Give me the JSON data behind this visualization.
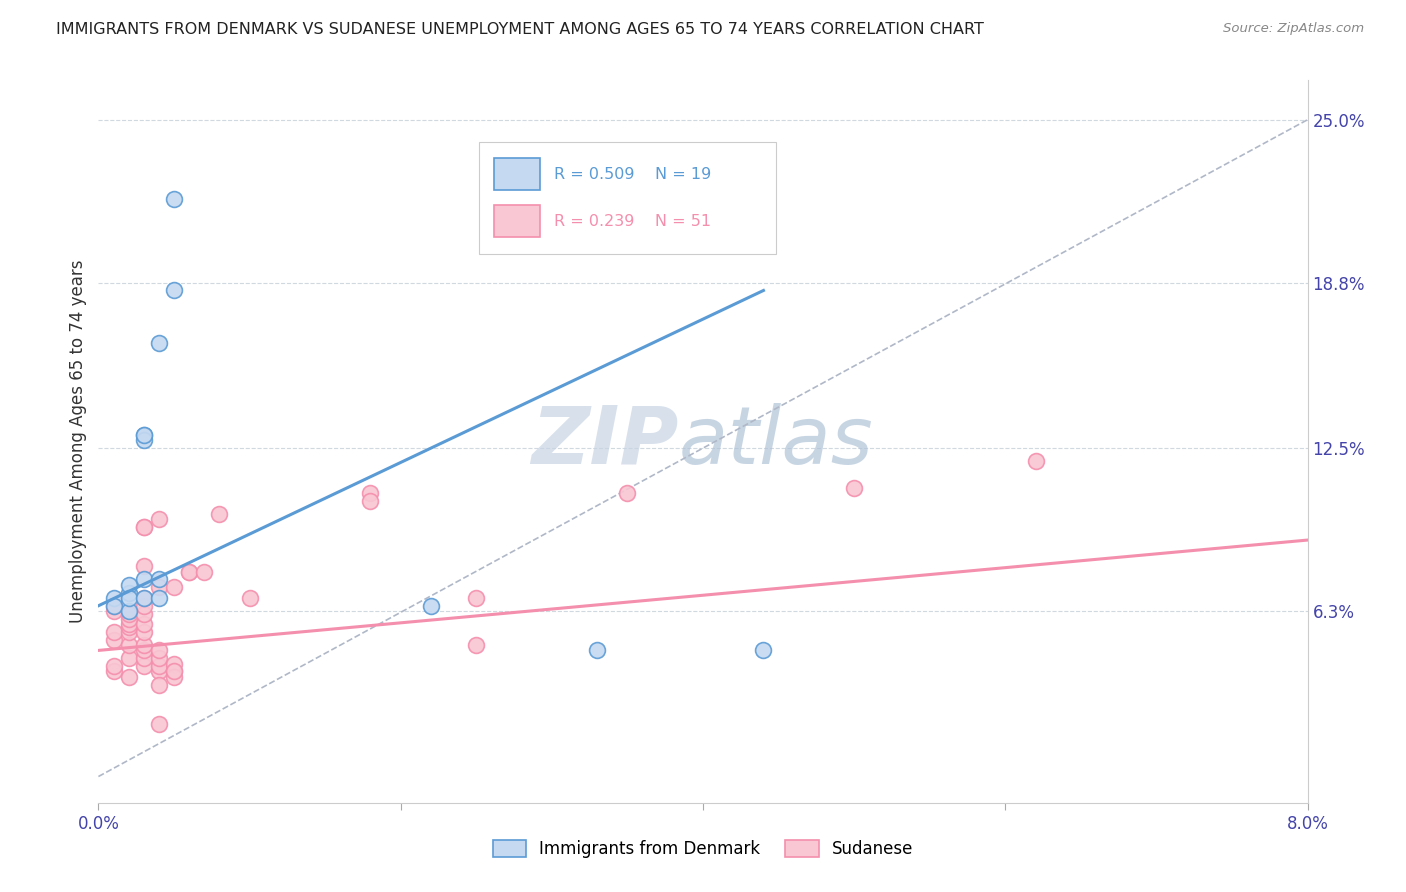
{
  "title": "IMMIGRANTS FROM DENMARK VS SUDANESE UNEMPLOYMENT AMONG AGES 65 TO 74 YEARS CORRELATION CHART",
  "source": "Source: ZipAtlas.com",
  "ylabel": "Unemployment Among Ages 65 to 74 years",
  "xlim": [
    0.0,
    0.08
  ],
  "ylim": [
    -0.01,
    0.265
  ],
  "xticks": [
    0.0,
    0.02,
    0.04,
    0.06,
    0.08
  ],
  "xticklabels": [
    "0.0%",
    "",
    "",
    "",
    "8.0%"
  ],
  "yticks_right": [
    0.063,
    0.125,
    0.188,
    0.25
  ],
  "yticklabels_right": [
    "6.3%",
    "12.5%",
    "18.8%",
    "25.0%"
  ],
  "denmark_R": "0.509",
  "denmark_N": "19",
  "sudanese_R": "0.239",
  "sudanese_N": "51",
  "denmark_label": "Immigrants from Denmark",
  "sudanese_label": "Sudanese",
  "denmark_scatter": [
    [
      0.001,
      0.068
    ],
    [
      0.001,
      0.065
    ],
    [
      0.002,
      0.063
    ],
    [
      0.002,
      0.07
    ],
    [
      0.002,
      0.073
    ],
    [
      0.002,
      0.068
    ],
    [
      0.003,
      0.13
    ],
    [
      0.003,
      0.128
    ],
    [
      0.003,
      0.075
    ],
    [
      0.003,
      0.068
    ],
    [
      0.003,
      0.13
    ],
    [
      0.004,
      0.165
    ],
    [
      0.004,
      0.075
    ],
    [
      0.004,
      0.068
    ],
    [
      0.005,
      0.185
    ],
    [
      0.005,
      0.22
    ],
    [
      0.022,
      0.065
    ],
    [
      0.033,
      0.048
    ],
    [
      0.044,
      0.048
    ]
  ],
  "sudanese_scatter": [
    [
      0.001,
      0.052
    ],
    [
      0.001,
      0.055
    ],
    [
      0.001,
      0.063
    ],
    [
      0.001,
      0.065
    ],
    [
      0.001,
      0.04
    ],
    [
      0.001,
      0.042
    ],
    [
      0.002,
      0.045
    ],
    [
      0.002,
      0.05
    ],
    [
      0.002,
      0.055
    ],
    [
      0.002,
      0.057
    ],
    [
      0.002,
      0.058
    ],
    [
      0.002,
      0.06
    ],
    [
      0.002,
      0.062
    ],
    [
      0.002,
      0.038
    ],
    [
      0.003,
      0.042
    ],
    [
      0.003,
      0.045
    ],
    [
      0.003,
      0.048
    ],
    [
      0.003,
      0.05
    ],
    [
      0.003,
      0.055
    ],
    [
      0.003,
      0.058
    ],
    [
      0.003,
      0.062
    ],
    [
      0.003,
      0.065
    ],
    [
      0.003,
      0.068
    ],
    [
      0.003,
      0.08
    ],
    [
      0.003,
      0.095
    ],
    [
      0.003,
      0.095
    ],
    [
      0.004,
      0.098
    ],
    [
      0.004,
      0.02
    ],
    [
      0.004,
      0.04
    ],
    [
      0.004,
      0.042
    ],
    [
      0.004,
      0.045
    ],
    [
      0.004,
      0.048
    ],
    [
      0.004,
      0.072
    ],
    [
      0.004,
      0.035
    ],
    [
      0.005,
      0.04
    ],
    [
      0.005,
      0.043
    ],
    [
      0.005,
      0.072
    ],
    [
      0.005,
      0.038
    ],
    [
      0.005,
      0.04
    ],
    [
      0.006,
      0.078
    ],
    [
      0.006,
      0.078
    ],
    [
      0.007,
      0.078
    ],
    [
      0.008,
      0.1
    ],
    [
      0.01,
      0.068
    ],
    [
      0.018,
      0.108
    ],
    [
      0.018,
      0.105
    ],
    [
      0.025,
      0.068
    ],
    [
      0.025,
      0.05
    ],
    [
      0.035,
      0.108
    ],
    [
      0.05,
      0.11
    ],
    [
      0.062,
      0.12
    ]
  ],
  "denmark_line_x": [
    0.0,
    0.044
  ],
  "denmark_line_y": [
    0.065,
    0.185
  ],
  "sudanese_line_x": [
    0.0,
    0.08
  ],
  "sudanese_line_y": [
    0.048,
    0.09
  ],
  "diagonal_line_x": [
    0.0,
    0.08
  ],
  "diagonal_line_y": [
    0.0,
    0.25
  ],
  "denmark_dot_color": "#5b9bd5",
  "denmark_dot_fill": "#c5d9f1",
  "sudanese_dot_color": "#f48fad",
  "sudanese_dot_fill": "#f9c6d3",
  "denmark_line_color": "#5b9bd5",
  "sudanese_line_color": "#f48fad",
  "diagonal_color": "#b0b8c8",
  "grid_color": "#d0d8e0",
  "background_color": "#ffffff",
  "watermark_zip": "ZIP",
  "watermark_atlas": "atlas",
  "watermark_color_zip": "#c8d4e4",
  "watermark_color_atlas": "#b0c4d8",
  "title_color": "#222222",
  "source_color": "#888888",
  "tick_color": "#4444aa",
  "ylabel_color": "#333333",
  "legend_edge_color": "#cccccc",
  "title_fontsize": 11.5,
  "axis_fontsize": 12
}
